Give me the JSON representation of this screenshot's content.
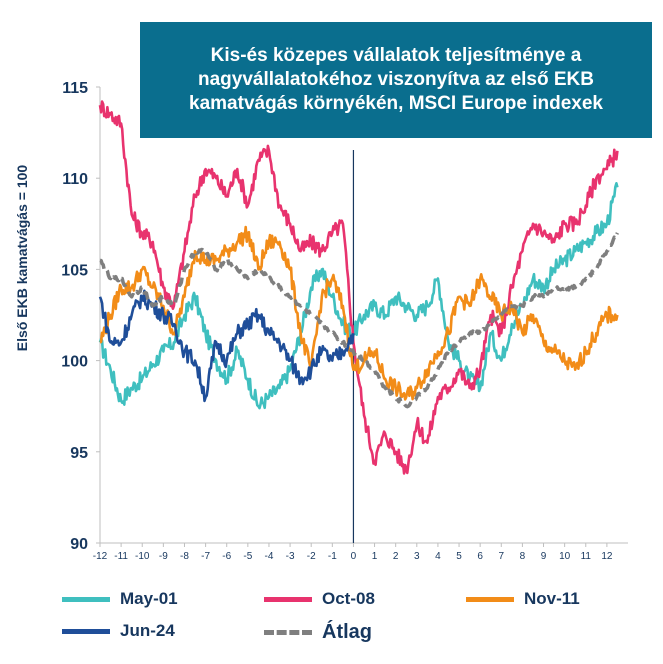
{
  "chart_data": {
    "type": "line",
    "title": "Kis-és közepes vállalatok teljesítménye a nagyvállalatokéhoz viszonyítva az első EKB kamatvágás környékén, MSCI Europe indexek",
    "ylabel": "Első EKB kamatvágás = 100",
    "xlabel": "",
    "ylim": [
      90,
      115
    ],
    "xlim": [
      -12,
      13
    ],
    "y_ticks": [
      "90",
      "95",
      "100",
      "105",
      "110",
      "115"
    ],
    "x_ticks": [
      "-12",
      "-11",
      "-10",
      "-9",
      "-8",
      "-7",
      "-6",
      "-5",
      "-4",
      "-3",
      "-2",
      "-1",
      "0",
      "1",
      "2",
      "3",
      "4",
      "5",
      "6",
      "7",
      "8",
      "9",
      "10",
      "11",
      "12"
    ],
    "vertical_line_at": 0,
    "legend_position": "bottom",
    "series": [
      {
        "name": "May-01",
        "color": "#3fbfbf",
        "style": "solid",
        "x": [
          -12,
          -11.5,
          -11,
          -10.5,
          -10,
          -9.5,
          -9,
          -8.5,
          -8,
          -7.5,
          -7,
          -6.5,
          -6,
          -5.5,
          -5,
          -4.5,
          -4,
          -3.5,
          -3,
          -2.5,
          -2,
          -1.5,
          -1,
          -0.5,
          0,
          0.5,
          1,
          1.5,
          2,
          2.5,
          3,
          3.5,
          4,
          4.5,
          5,
          5.5,
          6,
          6.5,
          7,
          7.5,
          8,
          8.5,
          9,
          9.5,
          10,
          10.5,
          11,
          11.5,
          12,
          12.5
        ],
        "y": [
          101,
          99.5,
          97.8,
          98.5,
          99,
          99.8,
          100.5,
          101,
          102.5,
          103.5,
          101.5,
          100,
          99,
          100.5,
          99,
          97.5,
          98,
          98.5,
          99.5,
          101.5,
          104,
          105,
          103.5,
          102,
          101.5,
          102.5,
          103,
          102.5,
          103.5,
          103,
          102.5,
          103,
          104.5,
          101,
          100,
          99,
          98.5,
          101.5,
          100,
          102,
          103,
          104.5,
          104,
          105,
          105.5,
          106,
          106.5,
          107,
          107.5,
          109.5
        ]
      },
      {
        "name": "Oct-08",
        "color": "#e8336e",
        "style": "solid",
        "x": [
          -12,
          -11.5,
          -11,
          -10.5,
          -10,
          -9.5,
          -9,
          -8.5,
          -8,
          -7.5,
          -7,
          -6.5,
          -6,
          -5.5,
          -5,
          -4.5,
          -4,
          -3.5,
          -3,
          -2.5,
          -2,
          -1.5,
          -1,
          -0.5,
          0,
          0.5,
          1,
          1.5,
          2,
          2.5,
          3,
          3.5,
          4,
          4.5,
          5,
          5.5,
          6,
          6.5,
          7,
          7.5,
          8,
          8.5,
          9,
          9.5,
          10,
          10.5,
          11,
          11.5,
          12,
          12.5
        ],
        "y": [
          114,
          113.5,
          113,
          108,
          107,
          106.5,
          104,
          103,
          106,
          109,
          110.5,
          110,
          109,
          110.5,
          108.5,
          111,
          111.5,
          108.5,
          107.5,
          106,
          106.5,
          106,
          107,
          107.5,
          101,
          97,
          94.5,
          96,
          95,
          94,
          96.5,
          95.5,
          98,
          98.5,
          99.5,
          98.5,
          99.5,
          102.5,
          101.5,
          104,
          106,
          107.5,
          107,
          106.5,
          107.5,
          107.5,
          108.5,
          110,
          110.5,
          111.5
        ]
      },
      {
        "name": "Nov-11",
        "color": "#f28c18",
        "style": "solid",
        "x": [
          -12,
          -11.5,
          -11,
          -10.5,
          -10,
          -9.5,
          -9,
          -8.5,
          -8,
          -7.5,
          -7,
          -6.5,
          -6,
          -5.5,
          -5,
          -4.5,
          -4,
          -3.5,
          -3,
          -2.5,
          -2,
          -1.5,
          -1,
          -0.5,
          0,
          0.5,
          1,
          1.5,
          2,
          2.5,
          3,
          3.5,
          4,
          4.5,
          5,
          5.5,
          6,
          6.5,
          7,
          7.5,
          8,
          8.5,
          9,
          9.5,
          10,
          10.5,
          11,
          11.5,
          12,
          12.5
        ],
        "y": [
          101,
          102.5,
          104,
          104,
          105,
          104,
          103,
          101.5,
          103.5,
          106,
          105.5,
          105.5,
          106,
          106.5,
          107,
          105,
          106.5,
          106.5,
          105,
          101.5,
          99.5,
          103.5,
          104.5,
          103,
          99.5,
          100,
          100.5,
          99,
          98.5,
          98,
          98.5,
          99.5,
          100.5,
          101.5,
          103.5,
          103,
          104.5,
          103.5,
          102.5,
          103,
          101.5,
          102.5,
          101,
          100.5,
          100,
          99.5,
          100.5,
          101.5,
          102.5,
          102.5
        ]
      },
      {
        "name": "Jun-24",
        "color": "#1f4e99",
        "style": "solid",
        "x": [
          -12,
          -11.5,
          -11,
          -10.5,
          -10,
          -9.5,
          -9,
          -8.5,
          -8,
          -7.5,
          -7,
          -6.5,
          -6,
          -5.5,
          -5,
          -4.5,
          -4,
          -3.5,
          -3,
          -2.5,
          -2,
          -1.5,
          -1,
          -0.5,
          0
        ],
        "y": [
          103.5,
          101,
          101,
          102.5,
          103.5,
          103,
          102.5,
          102,
          100.5,
          100,
          98,
          101,
          100,
          101.5,
          102,
          102.5,
          101.5,
          101,
          100,
          99,
          99.5,
          100.5,
          100,
          100.5,
          101.5
        ]
      },
      {
        "name": "Átlag",
        "color": "#7f7f7f",
        "style": "dashed",
        "x": [
          -12,
          -11.5,
          -11,
          -10.5,
          -10,
          -9.5,
          -9,
          -8.5,
          -8,
          -7.5,
          -7,
          -6.5,
          -6,
          -5.5,
          -5,
          -4.5,
          -4,
          -3.5,
          -3,
          -2.5,
          -2,
          -1.5,
          -1,
          -0.5,
          0,
          0.5,
          1,
          1.5,
          2,
          2.5,
          3,
          3.5,
          4,
          4.5,
          5,
          5.5,
          6,
          6.5,
          7,
          7.5,
          8,
          8.5,
          9,
          9.5,
          10,
          10.5,
          11,
          11.5,
          12,
          12.5
        ],
        "y": [
          105.5,
          104.5,
          104.5,
          103.5,
          104,
          103,
          103.5,
          103,
          105,
          106,
          106,
          105,
          105.5,
          105,
          104.5,
          105,
          104.5,
          104,
          103.5,
          103,
          102.5,
          102,
          101.5,
          101,
          100.5,
          100,
          99.5,
          98.5,
          98,
          97.5,
          98,
          98.5,
          99.5,
          100.5,
          101,
          101.5,
          101.5,
          102,
          102.5,
          103,
          103,
          103.5,
          103.5,
          104,
          104,
          104,
          104.5,
          105,
          106,
          107
        ]
      }
    ]
  }
}
